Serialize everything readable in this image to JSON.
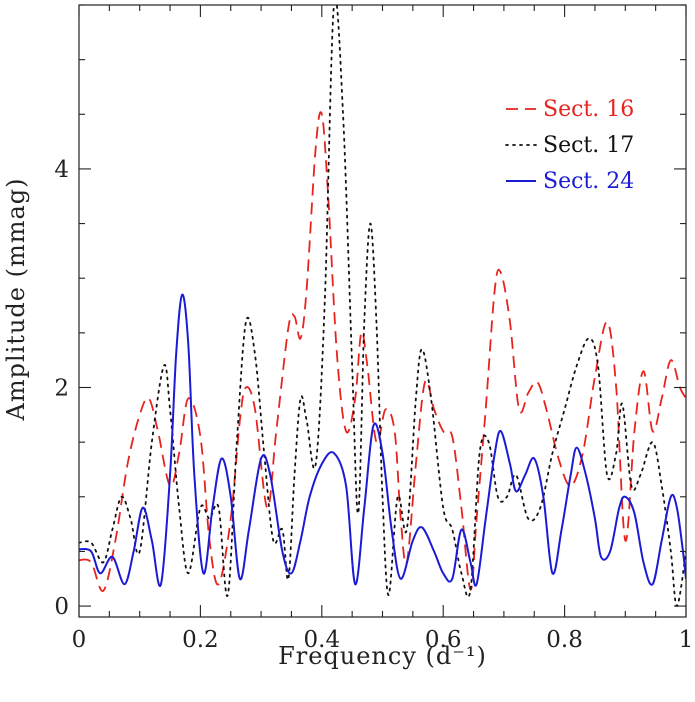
{
  "chart_data": {
    "type": "line",
    "xlabel": "Frequency (d⁻¹)",
    "ylabel": "Amplitude (mmag)",
    "xlim": [
      0,
      1
    ],
    "ylim": [
      -0.1,
      5.5
    ],
    "x_ticks": [
      {
        "v": 0,
        "label": "0"
      },
      {
        "v": 0.2,
        "label": "0.2"
      },
      {
        "v": 0.4,
        "label": "0.4"
      },
      {
        "v": 0.6,
        "label": "0.6"
      },
      {
        "v": 0.8,
        "label": "0.8"
      },
      {
        "v": 1,
        "label": "1"
      }
    ],
    "y_ticks": [
      {
        "v": 0,
        "label": "0"
      },
      {
        "v": 2,
        "label": "2"
      },
      {
        "v": 4,
        "label": "4"
      }
    ],
    "x_minor_step": 0.05,
    "y_minor_step": 0.5,
    "grid": false,
    "legend_position": "top-right",
    "series": [
      {
        "name": "Sect. 16",
        "color": "#e8231e",
        "dash": "12,7",
        "points": [
          [
            0,
            0.42
          ],
          [
            0.02,
            0.4
          ],
          [
            0.04,
            0.14
          ],
          [
            0.06,
            0.6
          ],
          [
            0.08,
            1.3
          ],
          [
            0.1,
            1.75
          ],
          [
            0.115,
            1.9
          ],
          [
            0.13,
            1.6
          ],
          [
            0.15,
            1.1
          ],
          [
            0.165,
            1.4
          ],
          [
            0.18,
            1.9
          ],
          [
            0.2,
            1.55
          ],
          [
            0.215,
            0.6
          ],
          [
            0.23,
            0.2
          ],
          [
            0.25,
            0.8
          ],
          [
            0.265,
            1.7
          ],
          [
            0.275,
            2.0
          ],
          [
            0.29,
            1.8
          ],
          [
            0.31,
            0.9
          ],
          [
            0.325,
            1.6
          ],
          [
            0.345,
            2.55
          ],
          [
            0.355,
            2.65
          ],
          [
            0.365,
            2.45
          ],
          [
            0.375,
            2.9
          ],
          [
            0.39,
            4.2
          ],
          [
            0.4,
            4.5
          ],
          [
            0.41,
            3.8
          ],
          [
            0.425,
            2.3
          ],
          [
            0.44,
            1.6
          ],
          [
            0.455,
            1.9
          ],
          [
            0.465,
            2.5
          ],
          [
            0.475,
            2.2
          ],
          [
            0.49,
            1.5
          ],
          [
            0.505,
            1.8
          ],
          [
            0.52,
            1.6
          ],
          [
            0.53,
            0.8
          ],
          [
            0.54,
            0.4
          ],
          [
            0.555,
            1.3
          ],
          [
            0.57,
            2.05
          ],
          [
            0.585,
            1.8
          ],
          [
            0.6,
            1.6
          ],
          [
            0.615,
            1.55
          ],
          [
            0.63,
            0.9
          ],
          [
            0.645,
            0.15
          ],
          [
            0.655,
            0.8
          ],
          [
            0.67,
            1.8
          ],
          [
            0.685,
            2.9
          ],
          [
            0.695,
            3.05
          ],
          [
            0.71,
            2.6
          ],
          [
            0.725,
            1.8
          ],
          [
            0.74,
            1.95
          ],
          [
            0.755,
            2.05
          ],
          [
            0.77,
            1.8
          ],
          [
            0.79,
            1.35
          ],
          [
            0.81,
            1.1
          ],
          [
            0.83,
            1.4
          ],
          [
            0.85,
            2.1
          ],
          [
            0.87,
            2.6
          ],
          [
            0.885,
            2.0
          ],
          [
            0.9,
            0.6
          ],
          [
            0.915,
            1.6
          ],
          [
            0.93,
            2.15
          ],
          [
            0.945,
            1.6
          ],
          [
            0.96,
            1.9
          ],
          [
            0.975,
            2.25
          ],
          [
            0.99,
            2.0
          ],
          [
            1.0,
            1.9
          ]
        ]
      },
      {
        "name": "Sect. 17",
        "color": "#111111",
        "dash": "2,5",
        "points": [
          [
            0,
            0.58
          ],
          [
            0.02,
            0.58
          ],
          [
            0.04,
            0.4
          ],
          [
            0.055,
            0.7
          ],
          [
            0.07,
            1.0
          ],
          [
            0.085,
            0.8
          ],
          [
            0.1,
            0.5
          ],
          [
            0.12,
            1.5
          ],
          [
            0.14,
            2.2
          ],
          [
            0.15,
            1.8
          ],
          [
            0.165,
            0.9
          ],
          [
            0.18,
            0.3
          ],
          [
            0.2,
            0.9
          ],
          [
            0.215,
            0.8
          ],
          [
            0.23,
            0.9
          ],
          [
            0.245,
            0.1
          ],
          [
            0.26,
            1.5
          ],
          [
            0.275,
            2.6
          ],
          [
            0.29,
            2.3
          ],
          [
            0.305,
            1.4
          ],
          [
            0.32,
            0.6
          ],
          [
            0.335,
            0.7
          ],
          [
            0.345,
            0.25
          ],
          [
            0.355,
            1.2
          ],
          [
            0.365,
            1.9
          ],
          [
            0.375,
            1.7
          ],
          [
            0.39,
            1.3
          ],
          [
            0.405,
            2.8
          ],
          [
            0.42,
            5.5
          ],
          [
            0.435,
            4.5
          ],
          [
            0.45,
            2.2
          ],
          [
            0.46,
            0.85
          ],
          [
            0.47,
            2.6
          ],
          [
            0.48,
            3.5
          ],
          [
            0.49,
            2.6
          ],
          [
            0.5,
            1.0
          ],
          [
            0.51,
            0.1
          ],
          [
            0.525,
            1.0
          ],
          [
            0.54,
            0.7
          ],
          [
            0.555,
            1.9
          ],
          [
            0.565,
            2.35
          ],
          [
            0.58,
            1.9
          ],
          [
            0.6,
            0.9
          ],
          [
            0.615,
            0.7
          ],
          [
            0.63,
            0.3
          ],
          [
            0.645,
            0.15
          ],
          [
            0.66,
            1.4
          ],
          [
            0.675,
            1.5
          ],
          [
            0.69,
            1.0
          ],
          [
            0.705,
            1.0
          ],
          [
            0.72,
            1.2
          ],
          [
            0.74,
            0.8
          ],
          [
            0.76,
            0.9
          ],
          [
            0.78,
            1.4
          ],
          [
            0.8,
            1.8
          ],
          [
            0.82,
            2.2
          ],
          [
            0.84,
            2.45
          ],
          [
            0.855,
            2.2
          ],
          [
            0.87,
            1.2
          ],
          [
            0.885,
            1.4
          ],
          [
            0.895,
            1.85
          ],
          [
            0.91,
            1.1
          ],
          [
            0.925,
            1.2
          ],
          [
            0.945,
            1.5
          ],
          [
            0.96,
            1.1
          ],
          [
            0.975,
            0.5
          ],
          [
            0.985,
            0.0
          ],
          [
            1.0,
            0.5
          ]
        ]
      },
      {
        "name": "Sect. 24",
        "color": "#1b1bd6",
        "dash": "",
        "points": [
          [
            0,
            0.52
          ],
          [
            0.02,
            0.5
          ],
          [
            0.035,
            0.3
          ],
          [
            0.055,
            0.45
          ],
          [
            0.075,
            0.2
          ],
          [
            0.09,
            0.5
          ],
          [
            0.105,
            0.9
          ],
          [
            0.12,
            0.6
          ],
          [
            0.135,
            0.2
          ],
          [
            0.15,
            1.2
          ],
          [
            0.16,
            2.3
          ],
          [
            0.17,
            2.85
          ],
          [
            0.18,
            2.4
          ],
          [
            0.19,
            1.2
          ],
          [
            0.205,
            0.3
          ],
          [
            0.22,
            0.9
          ],
          [
            0.235,
            1.35
          ],
          [
            0.25,
            1.0
          ],
          [
            0.265,
            0.25
          ],
          [
            0.28,
            0.7
          ],
          [
            0.3,
            1.35
          ],
          [
            0.315,
            1.2
          ],
          [
            0.335,
            0.5
          ],
          [
            0.35,
            0.3
          ],
          [
            0.365,
            0.6
          ],
          [
            0.38,
            1.0
          ],
          [
            0.4,
            1.3
          ],
          [
            0.42,
            1.4
          ],
          [
            0.44,
            1.1
          ],
          [
            0.455,
            0.2
          ],
          [
            0.47,
            0.9
          ],
          [
            0.485,
            1.65
          ],
          [
            0.5,
            1.4
          ],
          [
            0.515,
            0.7
          ],
          [
            0.53,
            0.25
          ],
          [
            0.55,
            0.6
          ],
          [
            0.565,
            0.72
          ],
          [
            0.585,
            0.5
          ],
          [
            0.6,
            0.3
          ],
          [
            0.615,
            0.25
          ],
          [
            0.63,
            0.7
          ],
          [
            0.645,
            0.4
          ],
          [
            0.655,
            0.2
          ],
          [
            0.67,
            0.8
          ],
          [
            0.685,
            1.4
          ],
          [
            0.695,
            1.6
          ],
          [
            0.71,
            1.3
          ],
          [
            0.72,
            1.05
          ],
          [
            0.735,
            1.2
          ],
          [
            0.75,
            1.35
          ],
          [
            0.765,
            1.0
          ],
          [
            0.78,
            0.3
          ],
          [
            0.795,
            0.7
          ],
          [
            0.81,
            1.2
          ],
          [
            0.82,
            1.45
          ],
          [
            0.835,
            1.2
          ],
          [
            0.85,
            0.8
          ],
          [
            0.86,
            0.45
          ],
          [
            0.875,
            0.5
          ],
          [
            0.89,
            0.9
          ],
          [
            0.9,
            1.0
          ],
          [
            0.915,
            0.85
          ],
          [
            0.93,
            0.4
          ],
          [
            0.945,
            0.2
          ],
          [
            0.96,
            0.6
          ],
          [
            0.975,
            1.0
          ],
          [
            0.985,
            0.9
          ],
          [
            0.995,
            0.5
          ],
          [
            1.0,
            0.25
          ]
        ]
      }
    ]
  }
}
